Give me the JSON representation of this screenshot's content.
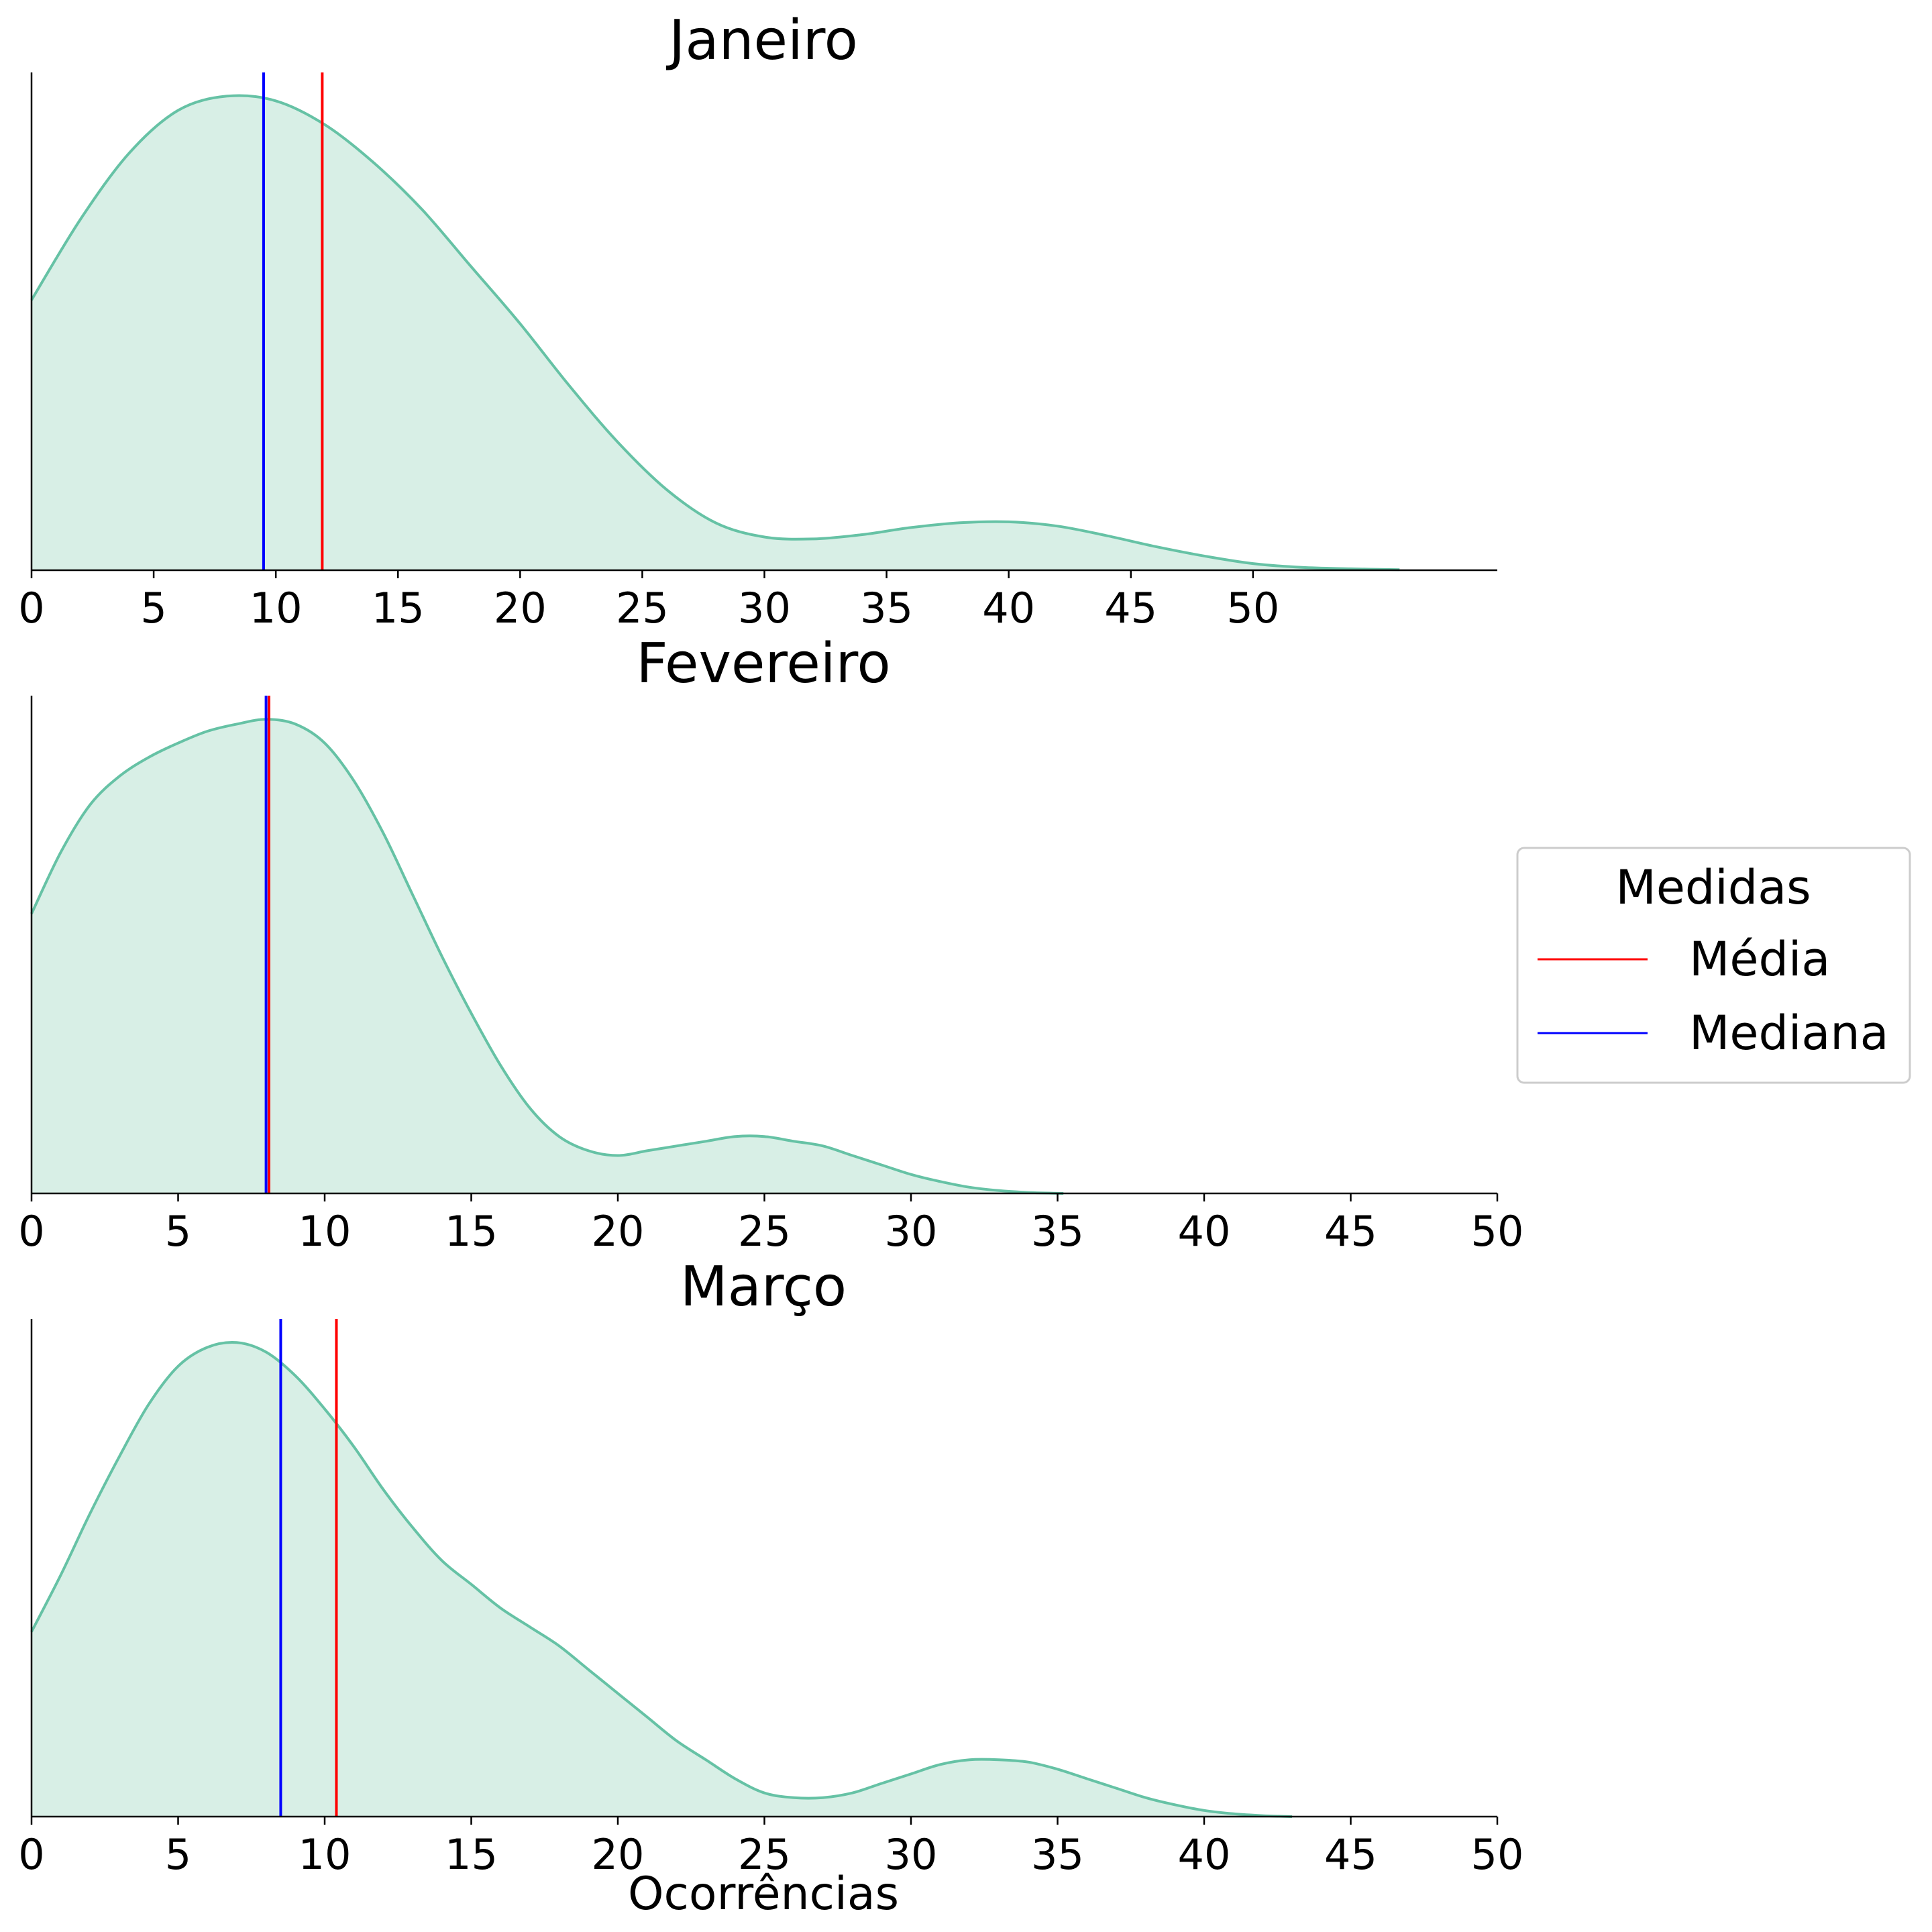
{
  "chart_data": [
    {
      "type": "area",
      "title": "Janeiro",
      "xlabel": "",
      "ylabel": "",
      "xlim": [
        0,
        60
      ],
      "xticks": [
        0,
        5,
        10,
        15,
        20,
        25,
        30,
        35,
        40,
        45,
        50
      ],
      "ylim": [
        0,
        1.05
      ],
      "density_x": [
        0,
        2,
        4,
        6,
        8,
        10,
        12,
        14,
        16,
        18,
        20,
        22,
        24,
        26,
        28,
        30,
        32,
        34,
        36,
        38,
        40,
        42,
        44,
        46,
        48,
        50,
        52,
        54,
        56
      ],
      "density_y": [
        0.57,
        0.74,
        0.88,
        0.97,
        1.0,
        0.99,
        0.94,
        0.86,
        0.76,
        0.64,
        0.52,
        0.39,
        0.27,
        0.17,
        0.1,
        0.07,
        0.066,
        0.075,
        0.09,
        0.1,
        0.102,
        0.093,
        0.073,
        0.05,
        0.03,
        0.014,
        0.006,
        0.003,
        0.001
      ],
      "mean": 11.9,
      "median": 9.5
    },
    {
      "type": "area",
      "title": "Fevereiro",
      "xlabel": "",
      "ylabel": "",
      "xlim": [
        0,
        50
      ],
      "xticks": [
        0,
        5,
        10,
        15,
        20,
        25,
        30,
        35,
        40,
        45,
        50
      ],
      "ylim": [
        0,
        1.05
      ],
      "density_x": [
        0,
        1,
        2,
        3,
        4,
        5,
        6,
        7,
        8,
        9,
        10,
        11,
        12,
        13,
        14,
        15,
        16,
        17,
        18,
        19,
        20,
        21,
        22,
        23,
        24,
        25,
        26,
        27,
        28,
        29,
        30,
        31,
        32,
        33,
        34,
        35.2
      ],
      "density_y": [
        0.59,
        0.72,
        0.82,
        0.88,
        0.92,
        0.95,
        0.975,
        0.99,
        1.0,
        0.99,
        0.95,
        0.87,
        0.76,
        0.63,
        0.5,
        0.38,
        0.27,
        0.18,
        0.12,
        0.09,
        0.08,
        0.09,
        0.1,
        0.11,
        0.12,
        0.12,
        0.11,
        0.1,
        0.08,
        0.06,
        0.04,
        0.025,
        0.013,
        0.006,
        0.002,
        0.0
      ],
      "mean": 8.1,
      "median": 8.0
    },
    {
      "type": "area",
      "title": "Março",
      "xlabel": "Ocorrências",
      "ylabel": "",
      "xlim": [
        0,
        50
      ],
      "xticks": [
        0,
        5,
        10,
        15,
        20,
        25,
        30,
        35,
        40,
        45,
        50
      ],
      "ylim": [
        0,
        1.05
      ],
      "density_x": [
        0,
        1,
        2,
        3,
        4,
        5,
        6,
        7,
        8,
        9,
        10,
        11,
        12,
        13,
        14,
        15,
        16,
        17,
        18,
        19,
        20,
        21,
        22,
        23,
        24,
        25,
        26,
        27,
        28,
        29,
        30,
        31,
        32,
        33,
        34,
        35,
        36,
        37,
        38,
        39,
        40,
        41,
        42,
        43
      ],
      "density_y": [
        0.39,
        0.51,
        0.64,
        0.76,
        0.87,
        0.95,
        0.99,
        1.0,
        0.98,
        0.93,
        0.86,
        0.78,
        0.69,
        0.61,
        0.54,
        0.49,
        0.44,
        0.4,
        0.36,
        0.31,
        0.26,
        0.21,
        0.16,
        0.12,
        0.08,
        0.05,
        0.04,
        0.04,
        0.05,
        0.07,
        0.09,
        0.11,
        0.12,
        0.12,
        0.115,
        0.1,
        0.08,
        0.06,
        0.04,
        0.025,
        0.013,
        0.006,
        0.002,
        0.0
      ],
      "mean": 10.4,
      "median": 8.5
    }
  ],
  "legend": {
    "title": "Medidas",
    "placement": "center-right",
    "items": [
      {
        "label": "Média",
        "color": "#ff0000"
      },
      {
        "label": "Mediana",
        "color": "#0000ff"
      }
    ]
  },
  "colors": {
    "density_line": "#66c2a5",
    "density_fill": "#d8efe6",
    "mean": "#ff0000",
    "median": "#0000ff"
  }
}
